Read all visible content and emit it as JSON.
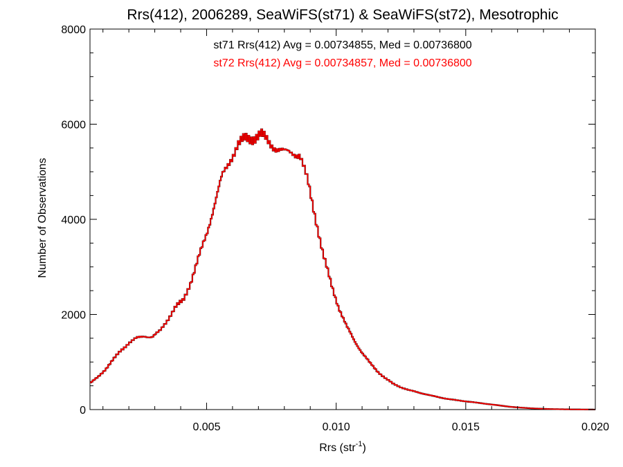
{
  "chart_data": {
    "type": "line",
    "style": "step-histogram",
    "title": "Rrs(412), 2006289, SeaWiFS(st71) & SeaWiFS(st72), Mesotrophic",
    "xlabel": "Rrs (str",
    "xlabel_sup": "-1",
    "xlabel_close": ")",
    "ylabel": "Number of Observations",
    "xlim": [
      0.0005,
      0.02
    ],
    "ylim": [
      0,
      8000
    ],
    "x_ticks": [
      0.005,
      0.01,
      0.015,
      0.02
    ],
    "x_tick_labels": [
      "0.005",
      "0.010",
      "0.015",
      "0.020"
    ],
    "y_ticks": [
      0,
      2000,
      4000,
      6000,
      8000
    ],
    "y_tick_labels": [
      "0",
      "2000",
      "4000",
      "6000",
      "8000"
    ],
    "grid": false,
    "annotations": [
      {
        "text": "st71 Rrs(412) Avg = 0.00734855, Med = 0.00736800",
        "color": "#000000"
      },
      {
        "text": "st72 Rrs(412) Avg = 0.00734857, Med = 0.00736800",
        "color": "#ff0000"
      }
    ],
    "series": [
      {
        "color": "#000000",
        "ref": "values"
      },
      {
        "color": "#ff0000",
        "ref": "values"
      }
    ],
    "x": [
      0.0005,
      0.0008,
      0.0011,
      0.0014,
      0.0017,
      0.002,
      0.0023,
      0.0026,
      0.0029,
      0.0032,
      0.0035,
      0.0038,
      0.0041,
      0.0044,
      0.0047,
      0.005,
      0.0053,
      0.0056,
      0.0059,
      0.0062,
      0.0065,
      0.0068,
      0.0071,
      0.0074,
      0.0077,
      0.008,
      0.0083,
      0.0086,
      0.0089,
      0.0092,
      0.0095,
      0.0098,
      0.0101,
      0.0104,
      0.0107,
      0.011,
      0.0113,
      0.0116,
      0.0119,
      0.0122,
      0.0125,
      0.0128,
      0.0131,
      0.0134,
      0.0137,
      0.014,
      0.0143,
      0.0146,
      0.0149,
      0.0152,
      0.0155,
      0.0158,
      0.0161,
      0.0164,
      0.0167,
      0.017,
      0.0173,
      0.0176,
      0.0179,
      0.0182,
      0.0185,
      0.0188,
      0.0191,
      0.0194,
      0.0197,
      0.02
    ],
    "values": [
      550,
      680,
      850,
      1050,
      1250,
      1400,
      1500,
      1550,
      1520,
      1650,
      1900,
      2150,
      2300,
      2700,
      3200,
      3700,
      4300,
      4900,
      5250,
      5550,
      5700,
      5720,
      5780,
      5620,
      5500,
      5400,
      5420,
      5350,
      4800,
      4050,
      3250,
      2650,
      2150,
      1750,
      1450,
      1200,
      980,
      800,
      660,
      540,
      470,
      410,
      370,
      330,
      290,
      255,
      225,
      200,
      180,
      160,
      140,
      120,
      100,
      80,
      60,
      45,
      35,
      25,
      18,
      12,
      9,
      6,
      4,
      3,
      2,
      1
    ]
  }
}
